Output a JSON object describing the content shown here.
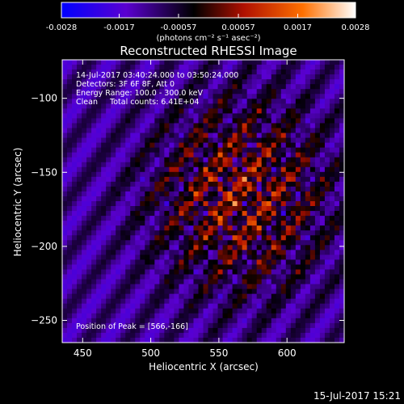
{
  "colorbar": {
    "ticks": [
      "-0.0028",
      "-0.0017",
      "-0.00057",
      "0.00057",
      "0.0017",
      "0.0028"
    ],
    "tick_values": [
      -0.0028,
      -0.0017,
      -0.00057,
      0.00057,
      0.0017,
      0.0028
    ],
    "units_label": "(photons cm⁻² s⁻¹ asec⁻²)",
    "range": [
      -0.0028,
      0.0028
    ],
    "colormap": [
      "#0000ff",
      "#5a00d0",
      "#000000",
      "#b01000",
      "#ff7000",
      "#ffffff"
    ]
  },
  "chart_data": {
    "type": "heatmap",
    "title": "Reconstructed RHESSI Image",
    "xlabel": "Heliocentric X (arcsec)",
    "ylabel": "Heliocentric Y (arcsec)",
    "xlim": [
      435,
      642
    ],
    "ylim": [
      -265,
      -74
    ],
    "xticks": [
      450,
      500,
      550,
      600
    ],
    "yticks": [
      -100,
      -150,
      -200,
      -250
    ],
    "annotations": [
      "14-Jul-2017 03:40:24.000 to 03:50:24.000",
      "Detectors: 3F 6F 8F, Att 0",
      "Energy Range: 100.0 - 300.0 keV",
      "Clean     Total counts: 6.41E+04"
    ],
    "peak_label": "Position of Peak = [566,-166]",
    "peak": {
      "x": 566,
      "y": -166
    }
  },
  "footer": {
    "timestamp": "15-Jul-2017 15:21"
  }
}
